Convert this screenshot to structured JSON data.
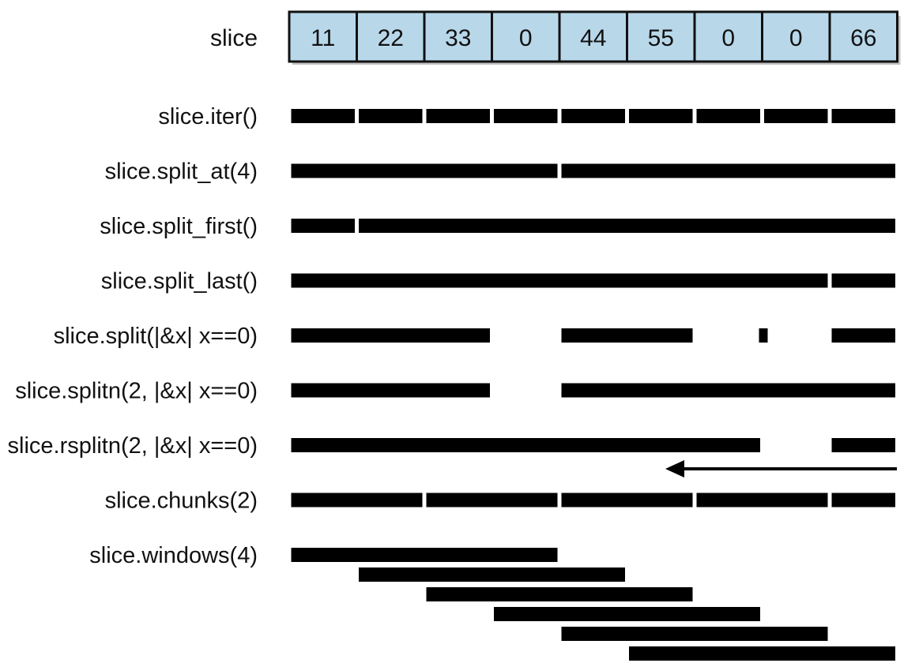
{
  "slice": {
    "label": "slice",
    "values": [
      "11",
      "22",
      "33",
      "0",
      "44",
      "55",
      "0",
      "0",
      "66"
    ],
    "cell_fill": "#b8d8ea",
    "shadow": "#9a9a9a"
  },
  "bar_color": "#000000",
  "rows": [
    {
      "label": "slice.iter()",
      "segments": [
        [
          0,
          1
        ],
        [
          1,
          2
        ],
        [
          2,
          3
        ],
        [
          3,
          4
        ],
        [
          4,
          5
        ],
        [
          5,
          6
        ],
        [
          6,
          7
        ],
        [
          7,
          8
        ],
        [
          8,
          9
        ]
      ]
    },
    {
      "label": "slice.split_at(4)",
      "segments": [
        [
          0,
          4
        ],
        [
          4,
          9
        ]
      ]
    },
    {
      "label": "slice.split_first()",
      "segments": [
        [
          0,
          1
        ],
        [
          1,
          9
        ]
      ]
    },
    {
      "label": "slice.split_last()",
      "segments": [
        [
          0,
          8
        ],
        [
          8,
          9
        ]
      ]
    },
    {
      "label": "slice.split(|&x| x==0)",
      "segments": [
        [
          0,
          3
        ],
        [
          4,
          6
        ],
        [
          7,
          7
        ],
        [
          8,
          9
        ]
      ]
    },
    {
      "label": "slice.splitn(2, |&x| x==0)",
      "segments": [
        [
          0,
          3
        ],
        [
          4,
          9
        ]
      ]
    },
    {
      "label": "slice.rsplitn(2, |&x| x==0)",
      "segments": [
        [
          0,
          7
        ],
        [
          8,
          9
        ]
      ],
      "arrow": "right-to-left"
    },
    {
      "label": "slice.chunks(2)",
      "segments": [
        [
          0,
          2
        ],
        [
          2,
          4
        ],
        [
          4,
          6
        ],
        [
          6,
          8
        ],
        [
          8,
          9
        ]
      ]
    },
    {
      "label": "slice.windows(4)",
      "windows": [
        [
          0,
          4
        ],
        [
          1,
          5
        ],
        [
          2,
          6
        ],
        [
          3,
          7
        ],
        [
          4,
          8
        ],
        [
          5,
          9
        ]
      ]
    }
  ]
}
